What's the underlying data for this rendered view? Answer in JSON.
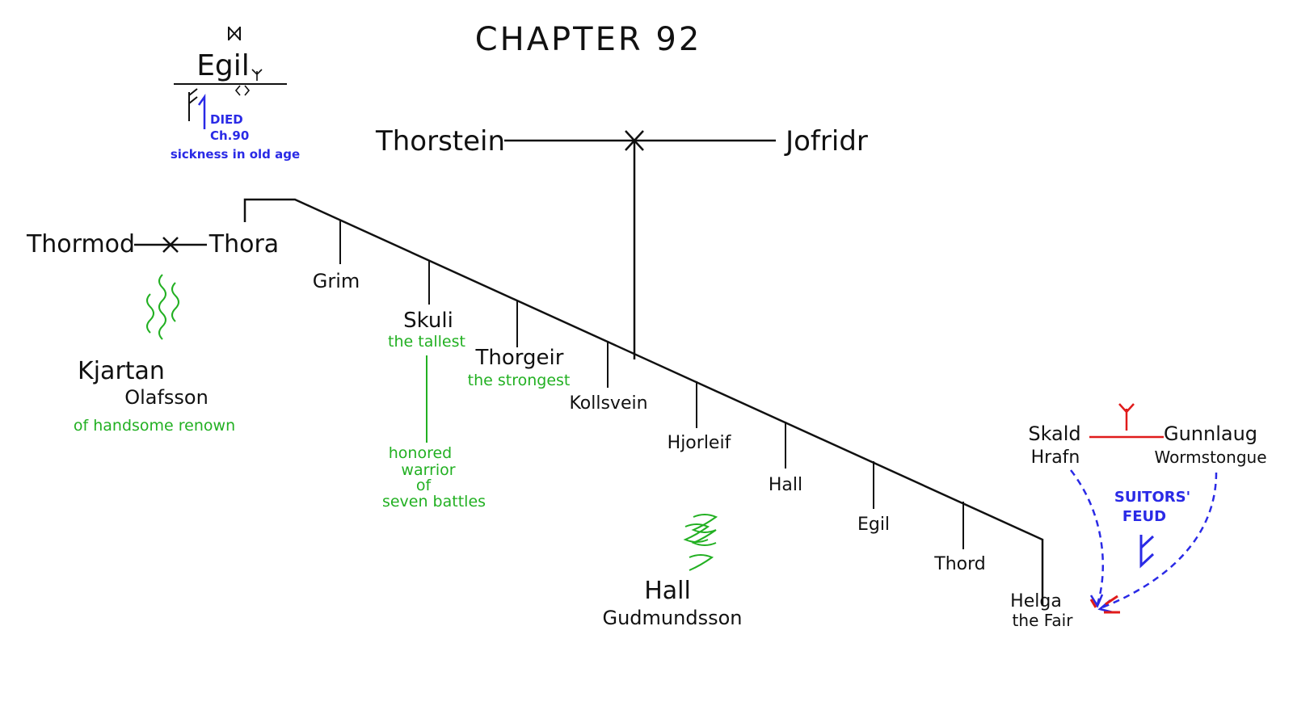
{
  "title": "CHAPTER 92",
  "colors": {
    "ink": "#111111",
    "green": "#22b022",
    "blue": "#2a2ae6",
    "red": "#e01b1b"
  },
  "egil_marker": {
    "name": "Egil",
    "died_label": "DIED",
    "chapter": "Ch.90",
    "cause": "sickness in old age"
  },
  "parents": {
    "father": "Thorstein",
    "mother": "Jofridr"
  },
  "couple_left": {
    "husband": "Thormod",
    "wife": "Thora"
  },
  "children": [
    {
      "name": "Grim"
    },
    {
      "name": "Skuli",
      "epithet": "the tallest"
    },
    {
      "name": "Thorgeir",
      "epithet": "the strongest"
    },
    {
      "name": "Kollsvein"
    },
    {
      "name": "Hjorleif"
    },
    {
      "name": "Hall"
    },
    {
      "name": "Egil"
    },
    {
      "name": "Thord"
    },
    {
      "name": "Helga",
      "epithet": "the Fair"
    }
  ],
  "skuli_note": [
    "honored",
    "warrior",
    "of",
    "seven battles"
  ],
  "descendants": [
    {
      "first": "Kjartan",
      "last": "Olafsson",
      "note": "of handsome renown"
    },
    {
      "first": "Hall",
      "last": "Gudmundsson",
      "note": ""
    }
  ],
  "feud": {
    "left_line1": "Skald",
    "left_line2": "Hrafn",
    "right_line1": "Gunnlaug",
    "right_line2": "Wormstongue",
    "label_line1": "SUITORS'",
    "label_line2": "FEUD"
  }
}
